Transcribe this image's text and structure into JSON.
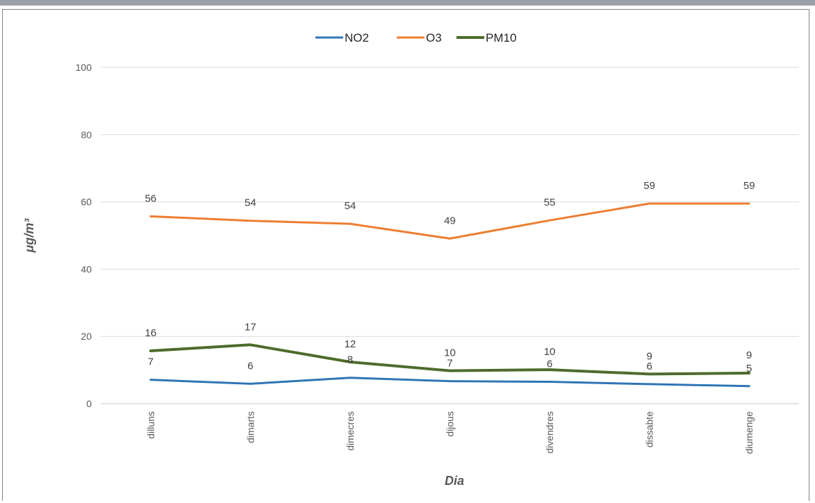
{
  "chart_data": {
    "type": "line",
    "title": "",
    "xlabel": "Dia",
    "ylabel": "μg/m³",
    "ylim": [
      0,
      100
    ],
    "yticks": [
      0,
      20,
      40,
      60,
      80,
      100
    ],
    "grid": true,
    "legend_position": "top",
    "categories": [
      "dilluns",
      "dimarts",
      "dimecres",
      "dijous",
      "divendres",
      "dissabte",
      "diumenge"
    ],
    "series": [
      {
        "name": "NO2",
        "color": "#2e75b6",
        "values": [
          7,
          6,
          8,
          7,
          6,
          6,
          5
        ],
        "plot_values": [
          7.1,
          5.9,
          7.7,
          6.7,
          6.5,
          5.8,
          5.2
        ]
      },
      {
        "name": "O3",
        "color": "#ed7d31",
        "values": [
          56,
          54,
          54,
          49,
          55,
          59,
          59
        ],
        "plot_values": [
          55.7,
          54.4,
          53.5,
          49.1,
          54.5,
          59.5,
          59.5
        ]
      },
      {
        "name": "PM10",
        "color": "#4e6b2b",
        "values": [
          16,
          17,
          12,
          10,
          10,
          9,
          9
        ],
        "plot_values": [
          15.7,
          17.5,
          12.4,
          9.8,
          10.1,
          8.8,
          9.1
        ]
      }
    ]
  }
}
